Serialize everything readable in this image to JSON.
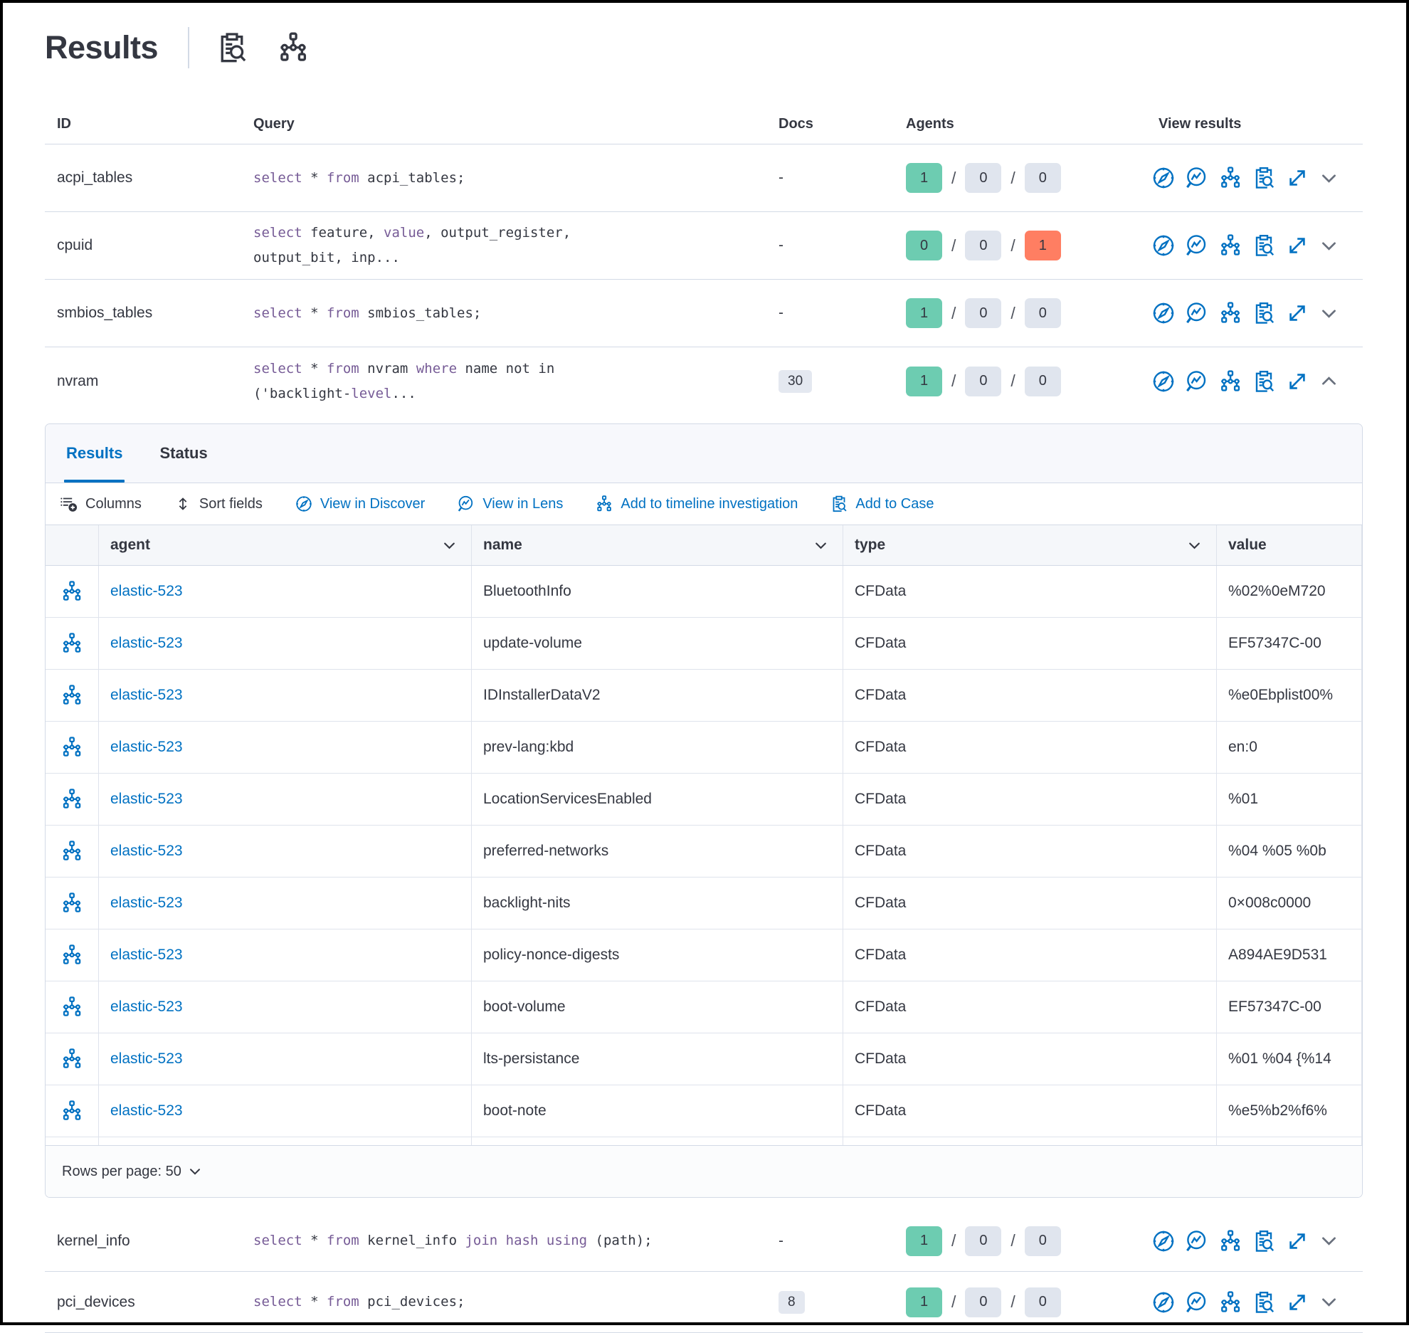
{
  "title": "Results",
  "header": {
    "icons": [
      "attach-to-case-icon",
      "timeline-icon"
    ]
  },
  "table": {
    "headers": {
      "id": "ID",
      "query": "Query",
      "docs": "Docs",
      "agents": "Agents",
      "view": "View results"
    },
    "action_icons": [
      "view-in-discover-icon",
      "view-in-lens-icon",
      "add-to-timeline-icon",
      "add-to-case-icon",
      "expand-results-icon",
      "toggle-row-chevron"
    ],
    "rows": [
      {
        "id": "acpi_tables",
        "query": [
          {
            "t": "select",
            "k": true
          },
          {
            "t": " * ",
            "k": false
          },
          {
            "t": "from",
            "k": true
          },
          {
            "t": " acpi_tables;",
            "k": false
          }
        ],
        "docs": {
          "text": "-",
          "badge": false
        },
        "agents": [
          {
            "v": "1",
            "s": "success"
          },
          {
            "v": "0",
            "s": "neutral"
          },
          {
            "v": "0",
            "s": "neutral"
          }
        ],
        "chevron": "down",
        "expanded": false
      },
      {
        "id": "cpuid",
        "query": [
          {
            "t": "select",
            "k": true
          },
          {
            "t": " feature, ",
            "k": false
          },
          {
            "t": "value",
            "k": true
          },
          {
            "t": ", output_register,",
            "k": false
          },
          {
            "br": true
          },
          {
            "t": "output_bit, inp...",
            "k": false
          }
        ],
        "docs": {
          "text": "-",
          "badge": false
        },
        "agents": [
          {
            "v": "0",
            "s": "success"
          },
          {
            "v": "0",
            "s": "neutral"
          },
          {
            "v": "1",
            "s": "danger"
          }
        ],
        "chevron": "down",
        "expanded": false
      },
      {
        "id": "smbios_tables",
        "query": [
          {
            "t": "select",
            "k": true
          },
          {
            "t": " * ",
            "k": false
          },
          {
            "t": "from",
            "k": true
          },
          {
            "t": " smbios_tables;",
            "k": false
          }
        ],
        "docs": {
          "text": "-",
          "badge": false
        },
        "agents": [
          {
            "v": "1",
            "s": "success"
          },
          {
            "v": "0",
            "s": "neutral"
          },
          {
            "v": "0",
            "s": "neutral"
          }
        ],
        "chevron": "down",
        "expanded": false
      },
      {
        "id": "nvram",
        "query": [
          {
            "t": "select",
            "k": true
          },
          {
            "t": " * ",
            "k": false
          },
          {
            "t": "from",
            "k": true
          },
          {
            "t": " nvram ",
            "k": false
          },
          {
            "t": "where",
            "k": true
          },
          {
            "t": " name not in",
            "k": false
          },
          {
            "br": true
          },
          {
            "t": "('backlight-",
            "k": false
          },
          {
            "t": "level",
            "k": true
          },
          {
            "t": "...",
            "k": false
          }
        ],
        "docs": {
          "text": "30",
          "badge": true
        },
        "agents": [
          {
            "v": "1",
            "s": "success"
          },
          {
            "v": "0",
            "s": "neutral"
          },
          {
            "v": "0",
            "s": "neutral"
          }
        ],
        "chevron": "up",
        "expanded": true
      },
      {
        "id": "kernel_info",
        "query": [
          {
            "t": "select",
            "k": true
          },
          {
            "t": " * ",
            "k": false
          },
          {
            "t": "from",
            "k": true
          },
          {
            "t": " kernel_info ",
            "k": false
          },
          {
            "t": "join",
            "k": true
          },
          {
            "t": " ",
            "k": false
          },
          {
            "t": "hash",
            "k": true
          },
          {
            "t": " ",
            "k": false
          },
          {
            "t": "using",
            "k": true
          },
          {
            "t": " (path);",
            "k": false
          }
        ],
        "docs": {
          "text": "-",
          "badge": false
        },
        "agents": [
          {
            "v": "1",
            "s": "success"
          },
          {
            "v": "0",
            "s": "neutral"
          },
          {
            "v": "0",
            "s": "neutral"
          }
        ],
        "chevron": "down",
        "expanded": false
      },
      {
        "id": "pci_devices",
        "query": [
          {
            "t": "select",
            "k": true
          },
          {
            "t": " * ",
            "k": false
          },
          {
            "t": "from",
            "k": true
          },
          {
            "t": " pci_devices;",
            "k": false
          }
        ],
        "docs": {
          "text": "8",
          "badge": true
        },
        "agents": [
          {
            "v": "1",
            "s": "success"
          },
          {
            "v": "0",
            "s": "neutral"
          },
          {
            "v": "0",
            "s": "neutral"
          }
        ],
        "chevron": "down",
        "expanded": false
      }
    ]
  },
  "panel": {
    "tabs": [
      {
        "label": "Results",
        "active": true
      },
      {
        "label": "Status",
        "active": false
      }
    ],
    "toolbar": [
      {
        "label": "Columns",
        "icon": "columns-icon",
        "style": "dark"
      },
      {
        "label": "Sort fields",
        "icon": "sort-fields-icon",
        "style": "dark"
      },
      {
        "label": "View in Discover",
        "icon": "discover-compass-icon",
        "style": "link"
      },
      {
        "label": "View in Lens",
        "icon": "lens-icon",
        "style": "link"
      },
      {
        "label": "Add to timeline investigation",
        "icon": "timeline-icon",
        "style": "link"
      },
      {
        "label": "Add to Case",
        "icon": "case-clipboard-icon",
        "style": "link"
      }
    ],
    "grid": {
      "columns": [
        "agent",
        "name",
        "type",
        "value"
      ],
      "rows": [
        {
          "agent": "elastic-523",
          "name": "BluetoothInfo",
          "type": "CFData",
          "value": "%02%0eM720"
        },
        {
          "agent": "elastic-523",
          "name": "update-volume",
          "type": "CFData",
          "value": "EF57347C-00"
        },
        {
          "agent": "elastic-523",
          "name": "IDInstallerDataV2",
          "type": "CFData",
          "value": "%e0Ebplist00%"
        },
        {
          "agent": "elastic-523",
          "name": "prev-lang:kbd",
          "type": "CFData",
          "value": "en:0"
        },
        {
          "agent": "elastic-523",
          "name": "LocationServicesEnabled",
          "type": "CFData",
          "value": "%01"
        },
        {
          "agent": "elastic-523",
          "name": "preferred-networks",
          "type": "CFData",
          "value": "%04 %05 %0b"
        },
        {
          "agent": "elastic-523",
          "name": "backlight-nits",
          "type": "CFData",
          "value": "0×008c0000"
        },
        {
          "agent": "elastic-523",
          "name": "policy-nonce-digests",
          "type": "CFData",
          "value": "A894AE9D531"
        },
        {
          "agent": "elastic-523",
          "name": "boot-volume",
          "type": "CFData",
          "value": "EF57347C-00"
        },
        {
          "agent": "elastic-523",
          "name": "lts-persistance",
          "type": "CFData",
          "value": "%01 %04 {%14"
        },
        {
          "agent": "elastic-523",
          "name": "boot-note",
          "type": "CFData",
          "value": "%e5%b2%f6%"
        }
      ],
      "footer": {
        "rows_per_page": "Rows per page: 50"
      }
    }
  },
  "colors": {
    "accent": "#0071c2",
    "success_badge": "#6dccb1",
    "neutral_badge": "#e0e5ee",
    "danger_badge": "#ff7e62",
    "sql_keyword": "#765b96",
    "border": "#d3dae6"
  }
}
